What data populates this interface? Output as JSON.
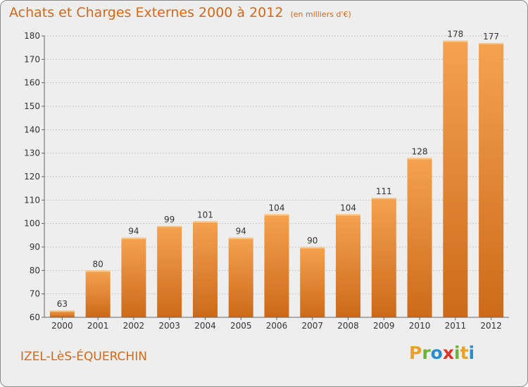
{
  "header": {
    "title": "Achats et Charges Externes 2000 à 2012",
    "unit": "(en milliers d'€)"
  },
  "footer": {
    "commune": "IZEL-LèS-ÉQUERCHIN",
    "logo": "Proxiti"
  },
  "chart_data": {
    "type": "bar",
    "categories": [
      "2000",
      "2001",
      "2002",
      "2003",
      "2004",
      "2005",
      "2006",
      "2007",
      "2008",
      "2009",
      "2010",
      "2011",
      "2012"
    ],
    "values": [
      63,
      80,
      94,
      99,
      101,
      94,
      104,
      90,
      104,
      111,
      128,
      178,
      177
    ],
    "title": "Achats et Charges Externes 2000 à 2012",
    "subtitle": "(en milliers d'€)",
    "ylim": [
      60,
      180
    ],
    "yticks": [
      60,
      70,
      80,
      90,
      100,
      110,
      120,
      130,
      140,
      150,
      160,
      170,
      180
    ],
    "grid": true,
    "bar_color_top": "#f5a24f",
    "bar_color_bottom": "#cc6a1a"
  }
}
